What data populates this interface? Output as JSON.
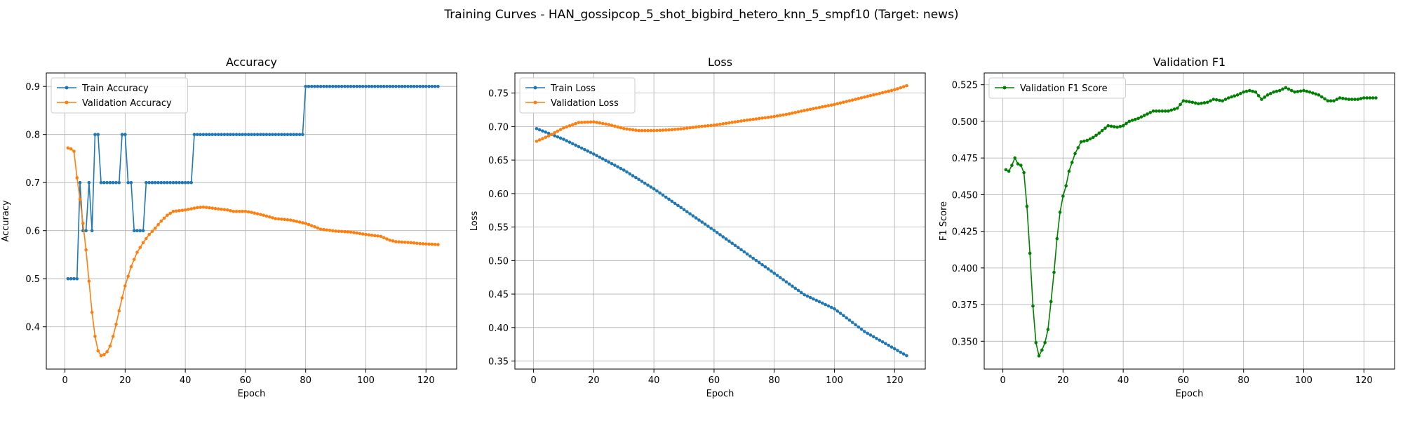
{
  "figure": {
    "suptitle": "Training Curves - HAN_gossipcop_5_shot_bigbird_hetero_knn_5_smpf10 (Target: news)"
  },
  "chart_data": [
    {
      "type": "line",
      "title": "Accuracy",
      "xlabel": "Epoch",
      "ylabel": "Accuracy",
      "xlim": [
        -6.2,
        130.2
      ],
      "ylim": [
        0.312,
        0.928
      ],
      "xticks": [
        0,
        20,
        40,
        60,
        80,
        100,
        120
      ],
      "yticks": [
        0.4,
        0.5,
        0.6,
        0.7,
        0.8,
        0.9
      ],
      "ytick_labels": [
        "0.4",
        "0.5",
        "0.6",
        "0.7",
        "0.8",
        "0.9"
      ],
      "grid": true,
      "legend_position": "upper-left",
      "series": [
        {
          "name": "Train Accuracy",
          "color": "#1f77b4",
          "segments": [
            {
              "from": 1,
              "to": 4,
              "value": 0.5
            },
            {
              "from": 5,
              "to": 5,
              "value": 0.7
            },
            {
              "from": 6,
              "to": 7,
              "value": 0.6
            },
            {
              "from": 8,
              "to": 8,
              "value": 0.7
            },
            {
              "from": 9,
              "to": 9,
              "value": 0.6
            },
            {
              "from": 10,
              "to": 11,
              "value": 0.8
            },
            {
              "from": 12,
              "to": 18,
              "value": 0.7
            },
            {
              "from": 19,
              "to": 20,
              "value": 0.8
            },
            {
              "from": 21,
              "to": 22,
              "value": 0.7
            },
            {
              "from": 23,
              "to": 26,
              "value": 0.6
            },
            {
              "from": 27,
              "to": 42,
              "value": 0.7
            },
            {
              "from": 43,
              "to": 79,
              "value": 0.8
            },
            {
              "from": 80,
              "to": 124,
              "value": 0.9
            }
          ]
        },
        {
          "name": "Validation Accuracy",
          "color": "#ff7f0e",
          "keypoints": [
            [
              1,
              0.772
            ],
            [
              2,
              0.77
            ],
            [
              3,
              0.765
            ],
            [
              4,
              0.71
            ],
            [
              5,
              0.665
            ],
            [
              6,
              0.615
            ],
            [
              7,
              0.56
            ],
            [
              8,
              0.495
            ],
            [
              9,
              0.43
            ],
            [
              10,
              0.38
            ],
            [
              11,
              0.35
            ],
            [
              12,
              0.34
            ],
            [
              13,
              0.342
            ],
            [
              14,
              0.348
            ],
            [
              15,
              0.36
            ],
            [
              16,
              0.38
            ],
            [
              17,
              0.405
            ],
            [
              18,
              0.433
            ],
            [
              19,
              0.46
            ],
            [
              20,
              0.485
            ],
            [
              22,
              0.525
            ],
            [
              24,
              0.555
            ],
            [
              26,
              0.575
            ],
            [
              28,
              0.592
            ],
            [
              30,
              0.605
            ],
            [
              32,
              0.62
            ],
            [
              34,
              0.632
            ],
            [
              36,
              0.64
            ],
            [
              40,
              0.643
            ],
            [
              44,
              0.648
            ],
            [
              46,
              0.649
            ],
            [
              50,
              0.646
            ],
            [
              54,
              0.643
            ],
            [
              56,
              0.64
            ],
            [
              60,
              0.64
            ],
            [
              62,
              0.638
            ],
            [
              66,
              0.632
            ],
            [
              70,
              0.625
            ],
            [
              75,
              0.622
            ],
            [
              80,
              0.615
            ],
            [
              83,
              0.608
            ],
            [
              85,
              0.603
            ],
            [
              90,
              0.599
            ],
            [
              95,
              0.597
            ],
            [
              100,
              0.592
            ],
            [
              105,
              0.588
            ],
            [
              108,
              0.58
            ],
            [
              110,
              0.577
            ],
            [
              115,
              0.575
            ],
            [
              118,
              0.573
            ],
            [
              124,
              0.571
            ]
          ]
        }
      ]
    },
    {
      "type": "line",
      "title": "Loss",
      "xlabel": "Epoch",
      "ylabel": "Loss",
      "xlim": [
        -6.2,
        130.2
      ],
      "ylim": [
        0.338,
        0.78
      ],
      "xticks": [
        0,
        20,
        40,
        60,
        80,
        100,
        120
      ],
      "yticks": [
        0.35,
        0.4,
        0.45,
        0.5,
        0.55,
        0.6,
        0.65,
        0.7,
        0.75
      ],
      "ytick_labels": [
        "0.35",
        "0.40",
        "0.45",
        "0.50",
        "0.55",
        "0.60",
        "0.65",
        "0.70",
        "0.75"
      ],
      "grid": true,
      "legend_position": "upper-left",
      "series": [
        {
          "name": "Train Loss",
          "color": "#1f77b4",
          "keypoints": [
            [
              1,
              0.697
            ],
            [
              10,
              0.681
            ],
            [
              20,
              0.659
            ],
            [
              30,
              0.635
            ],
            [
              40,
              0.607
            ],
            [
              50,
              0.576
            ],
            [
              60,
              0.545
            ],
            [
              70,
              0.513
            ],
            [
              80,
              0.481
            ],
            [
              90,
              0.449
            ],
            [
              100,
              0.428
            ],
            [
              110,
              0.394
            ],
            [
              124,
              0.358
            ]
          ]
        },
        {
          "name": "Validation Loss",
          "color": "#ff7f0e",
          "keypoints": [
            [
              1,
              0.678
            ],
            [
              5,
              0.686
            ],
            [
              10,
              0.698
            ],
            [
              15,
              0.706
            ],
            [
              20,
              0.707
            ],
            [
              25,
              0.703
            ],
            [
              30,
              0.697
            ],
            [
              35,
              0.694
            ],
            [
              40,
              0.694
            ],
            [
              45,
              0.695
            ],
            [
              50,
              0.697
            ],
            [
              55,
              0.7
            ],
            [
              60,
              0.702
            ],
            [
              70,
              0.709
            ],
            [
              80,
              0.715
            ],
            [
              85,
              0.719
            ],
            [
              90,
              0.724
            ],
            [
              100,
              0.733
            ],
            [
              110,
              0.744
            ],
            [
              120,
              0.755
            ],
            [
              124,
              0.761
            ]
          ]
        }
      ]
    },
    {
      "type": "line",
      "title": "Validation F1",
      "xlabel": "Epoch",
      "ylabel": "F1 Score",
      "xlim": [
        -6.2,
        130.2
      ],
      "ylim": [
        0.331,
        0.533
      ],
      "xticks": [
        0,
        20,
        40,
        60,
        80,
        100,
        120
      ],
      "yticks": [
        0.35,
        0.375,
        0.4,
        0.425,
        0.45,
        0.475,
        0.5,
        0.525
      ],
      "ytick_labels": [
        "0.350",
        "0.375",
        "0.400",
        "0.425",
        "0.450",
        "0.475",
        "0.500",
        "0.525"
      ],
      "grid": true,
      "legend_position": "upper-left",
      "series": [
        {
          "name": "Validation F1 Score",
          "color": "#008000",
          "keypoints": [
            [
              1,
              0.467
            ],
            [
              2,
              0.466
            ],
            [
              3,
              0.47
            ],
            [
              4,
              0.475
            ],
            [
              5,
              0.471
            ],
            [
              6,
              0.47
            ],
            [
              7,
              0.465
            ],
            [
              8,
              0.442
            ],
            [
              9,
              0.41
            ],
            [
              10,
              0.374
            ],
            [
              11,
              0.349
            ],
            [
              12,
              0.34
            ],
            [
              13,
              0.344
            ],
            [
              14,
              0.349
            ],
            [
              15,
              0.358
            ],
            [
              16,
              0.377
            ],
            [
              17,
              0.397
            ],
            [
              18,
              0.42
            ],
            [
              19,
              0.438
            ],
            [
              20,
              0.449
            ],
            [
              21,
              0.456
            ],
            [
              22,
              0.466
            ],
            [
              23,
              0.472
            ],
            [
              24,
              0.478
            ],
            [
              25,
              0.482
            ],
            [
              26,
              0.486
            ],
            [
              28,
              0.487
            ],
            [
              30,
              0.489
            ],
            [
              32,
              0.492
            ],
            [
              35,
              0.497
            ],
            [
              38,
              0.496
            ],
            [
              40,
              0.497
            ],
            [
              42,
              0.5
            ],
            [
              45,
              0.502
            ],
            [
              48,
              0.505
            ],
            [
              50,
              0.507
            ],
            [
              55,
              0.507
            ],
            [
              58,
              0.509
            ],
            [
              60,
              0.514
            ],
            [
              63,
              0.513
            ],
            [
              65,
              0.512
            ],
            [
              68,
              0.513
            ],
            [
              70,
              0.515
            ],
            [
              73,
              0.514
            ],
            [
              75,
              0.516
            ],
            [
              78,
              0.518
            ],
            [
              80,
              0.52
            ],
            [
              82,
              0.521
            ],
            [
              84,
              0.52
            ],
            [
              86,
              0.515
            ],
            [
              88,
              0.518
            ],
            [
              90,
              0.52
            ],
            [
              92,
              0.521
            ],
            [
              94,
              0.523
            ],
            [
              95,
              0.522
            ],
            [
              97,
              0.52
            ],
            [
              100,
              0.521
            ],
            [
              102,
              0.52
            ],
            [
              105,
              0.518
            ],
            [
              108,
              0.514
            ],
            [
              110,
              0.514
            ],
            [
              112,
              0.516
            ],
            [
              115,
              0.515
            ],
            [
              118,
              0.515
            ],
            [
              120,
              0.516
            ],
            [
              124,
              0.516
            ]
          ]
        }
      ]
    }
  ]
}
